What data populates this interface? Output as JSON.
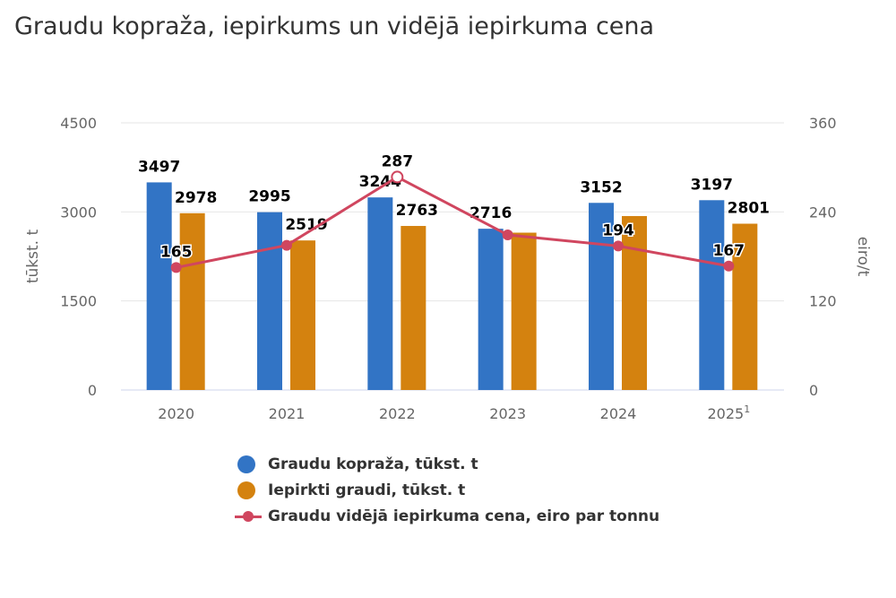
{
  "title": "Graudu kopraža, iepirkums un vidējā iepirkuma cena",
  "chart_data": {
    "type": "bar",
    "title": "Graudu kopraža, iepirkums un vidējā iepirkuma cena",
    "categories": [
      "2020",
      "2021",
      "2022",
      "2023",
      "2024",
      "2025"
    ],
    "category_superscripts": [
      "",
      "",
      "",
      "",
      "",
      "1"
    ],
    "ylabel": "tūkst. t",
    "ylim": [
      0,
      4500
    ],
    "yticks": [
      "0",
      "1500",
      "3000",
      "4500"
    ],
    "y2label": "eiro/t",
    "y2lim": [
      0,
      360
    ],
    "y2ticks": [
      "0",
      "120",
      "240",
      "360"
    ],
    "grid": true,
    "legend": "bottom",
    "series": [
      {
        "name": "Graudu kopraža, tūkst. t",
        "type": "bar",
        "axis": "left",
        "color": "#3274c5",
        "values": [
          3497,
          2995,
          3244,
          2716,
          3152,
          3197
        ],
        "labels": [
          "3497",
          "2995",
          "3244",
          "2716",
          "3152",
          "3197"
        ]
      },
      {
        "name": "Iepirkti graudi, tūkst. t",
        "type": "bar",
        "axis": "left",
        "color": "#d4820f",
        "values": [
          2978,
          2519,
          2763,
          2650,
          2930,
          2801
        ],
        "labels": [
          "2978",
          "2519",
          "2763",
          null,
          null,
          "2801"
        ]
      },
      {
        "name": "Graudu vidējā iepirkuma cena, eiro par tonnu",
        "type": "line",
        "axis": "right",
        "color": "#d0465f",
        "values": [
          165,
          195,
          287,
          209,
          194,
          167
        ],
        "labels": [
          "165",
          null,
          "287",
          null,
          "194",
          "167"
        ]
      }
    ]
  }
}
